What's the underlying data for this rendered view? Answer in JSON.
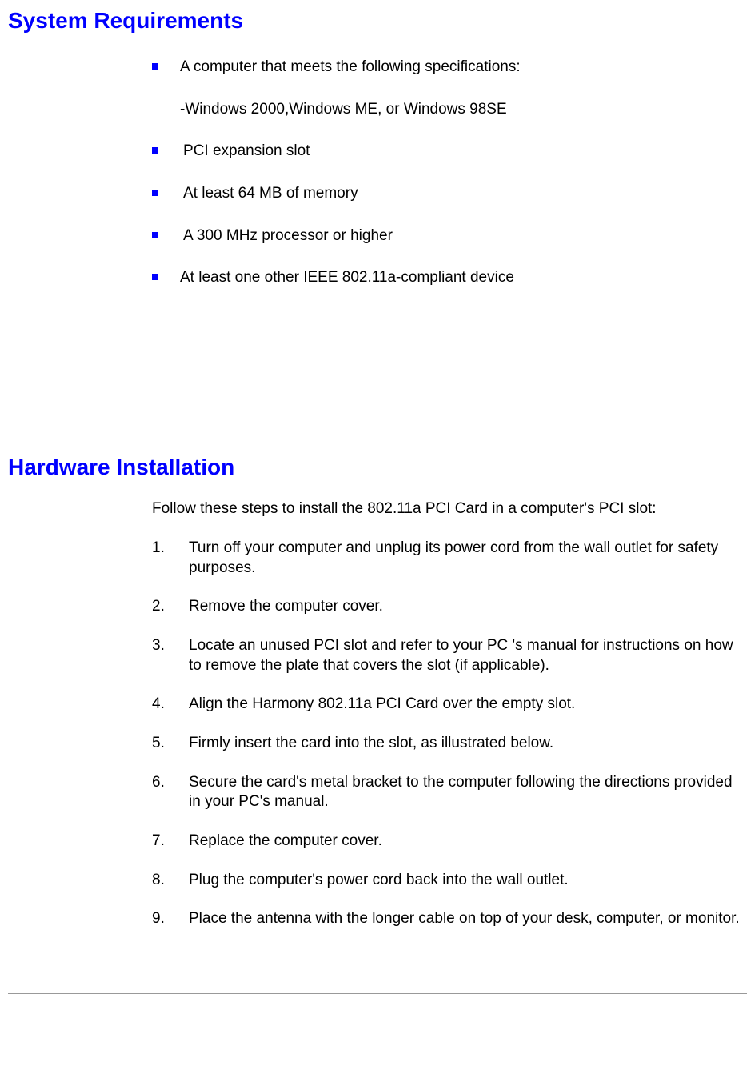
{
  "colors": {
    "heading": "#0000ff",
    "bullet": "#0000ff",
    "text": "#000000",
    "background": "#ffffff",
    "hr": "#999999"
  },
  "typography": {
    "heading_fontsize": 28,
    "body_fontsize": 19,
    "font_family": "Arial"
  },
  "section1": {
    "heading": "System Requirements",
    "bullets": [
      {
        "text": "A computer that meets the following specifications:",
        "subtext": "-Windows 2000,Windows ME, or Windows 98SE",
        "padded": false
      },
      {
        "text": " PCI expansion slot",
        "padded": true
      },
      {
        "text": " At least 64 MB of memory",
        "padded": true
      },
      {
        "text": " A 300 MHz processor or higher",
        "padded": true
      },
      {
        "text": "At least one other IEEE 802.11a-compliant device",
        "padded": false
      }
    ]
  },
  "section2": {
    "heading": "Hardware Installation",
    "intro": "Follow these steps to install the 802.11a PCI Card in a computer's PCI slot:",
    "steps": [
      {
        "num": "1.",
        "text": "Turn off your computer and unplug its power cord from the wall outlet for safety purposes."
      },
      {
        "num": "2.",
        "text": "Remove the computer cover."
      },
      {
        "num": "3.",
        "text": "Locate an unused PCI slot and refer to your PC 's manual for instructions on how to remove the plate that covers the slot (if applicable)."
      },
      {
        "num": "4.",
        "text": "Align the Harmony 802.11a PCI Card over the empty slot."
      },
      {
        "num": "5.",
        "text": "Firmly insert the card into the slot, as illustrated below."
      },
      {
        "num": "6.",
        "text": "Secure the card's metal bracket to the computer following the directions provided in your PC's manual."
      },
      {
        "num": "7.",
        "text": "Replace the computer cover."
      },
      {
        "num": "8.",
        "text": "Plug the computer's power cord back into the wall outlet."
      },
      {
        "num": "9.",
        "text": "Place the antenna with the longer cable on top of your desk, computer, or monitor."
      }
    ]
  }
}
